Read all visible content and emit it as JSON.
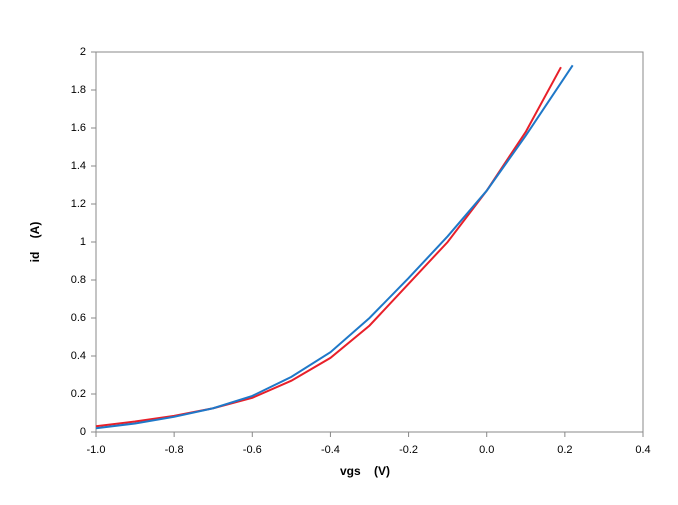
{
  "chart_data": {
    "type": "line",
    "x_label": "vgs    (V)",
    "y_label": "id    (A)",
    "series": [
      {
        "color": "#e8202a",
        "x": [
          -1.0,
          -0.9,
          -0.8,
          -0.7,
          -0.6,
          -0.5,
          -0.4,
          -0.3,
          -0.2,
          -0.1,
          0.0,
          0.1,
          0.19
        ],
        "values": [
          0.03,
          0.055,
          0.085,
          0.125,
          0.18,
          0.27,
          0.39,
          0.56,
          0.78,
          1.0,
          1.27,
          1.58,
          1.92
        ]
      },
      {
        "color": "#1f78c8",
        "x": [
          -1.0,
          -0.9,
          -0.8,
          -0.7,
          -0.6,
          -0.5,
          -0.4,
          -0.3,
          -0.2,
          -0.1,
          0.0,
          0.1,
          0.22
        ],
        "values": [
          0.02,
          0.045,
          0.08,
          0.125,
          0.19,
          0.29,
          0.42,
          0.6,
          0.81,
          1.03,
          1.27,
          1.56,
          1.93
        ]
      }
    ],
    "xlim": [
      -1.0,
      0.4
    ],
    "xticks": [
      {
        "value": -1.0,
        "label": "-1.0"
      },
      -0.8,
      -0.6,
      -0.4,
      -0.2,
      {
        "value": 0.0,
        "label": "0.0"
      },
      0.2,
      0.4
    ],
    "ylim": [
      0,
      2
    ],
    "yticks": [
      0,
      0.2,
      0.4,
      0.6,
      0.8,
      1,
      1.2,
      1.4,
      1.6,
      1.8,
      2
    ],
    "grid": false
  }
}
